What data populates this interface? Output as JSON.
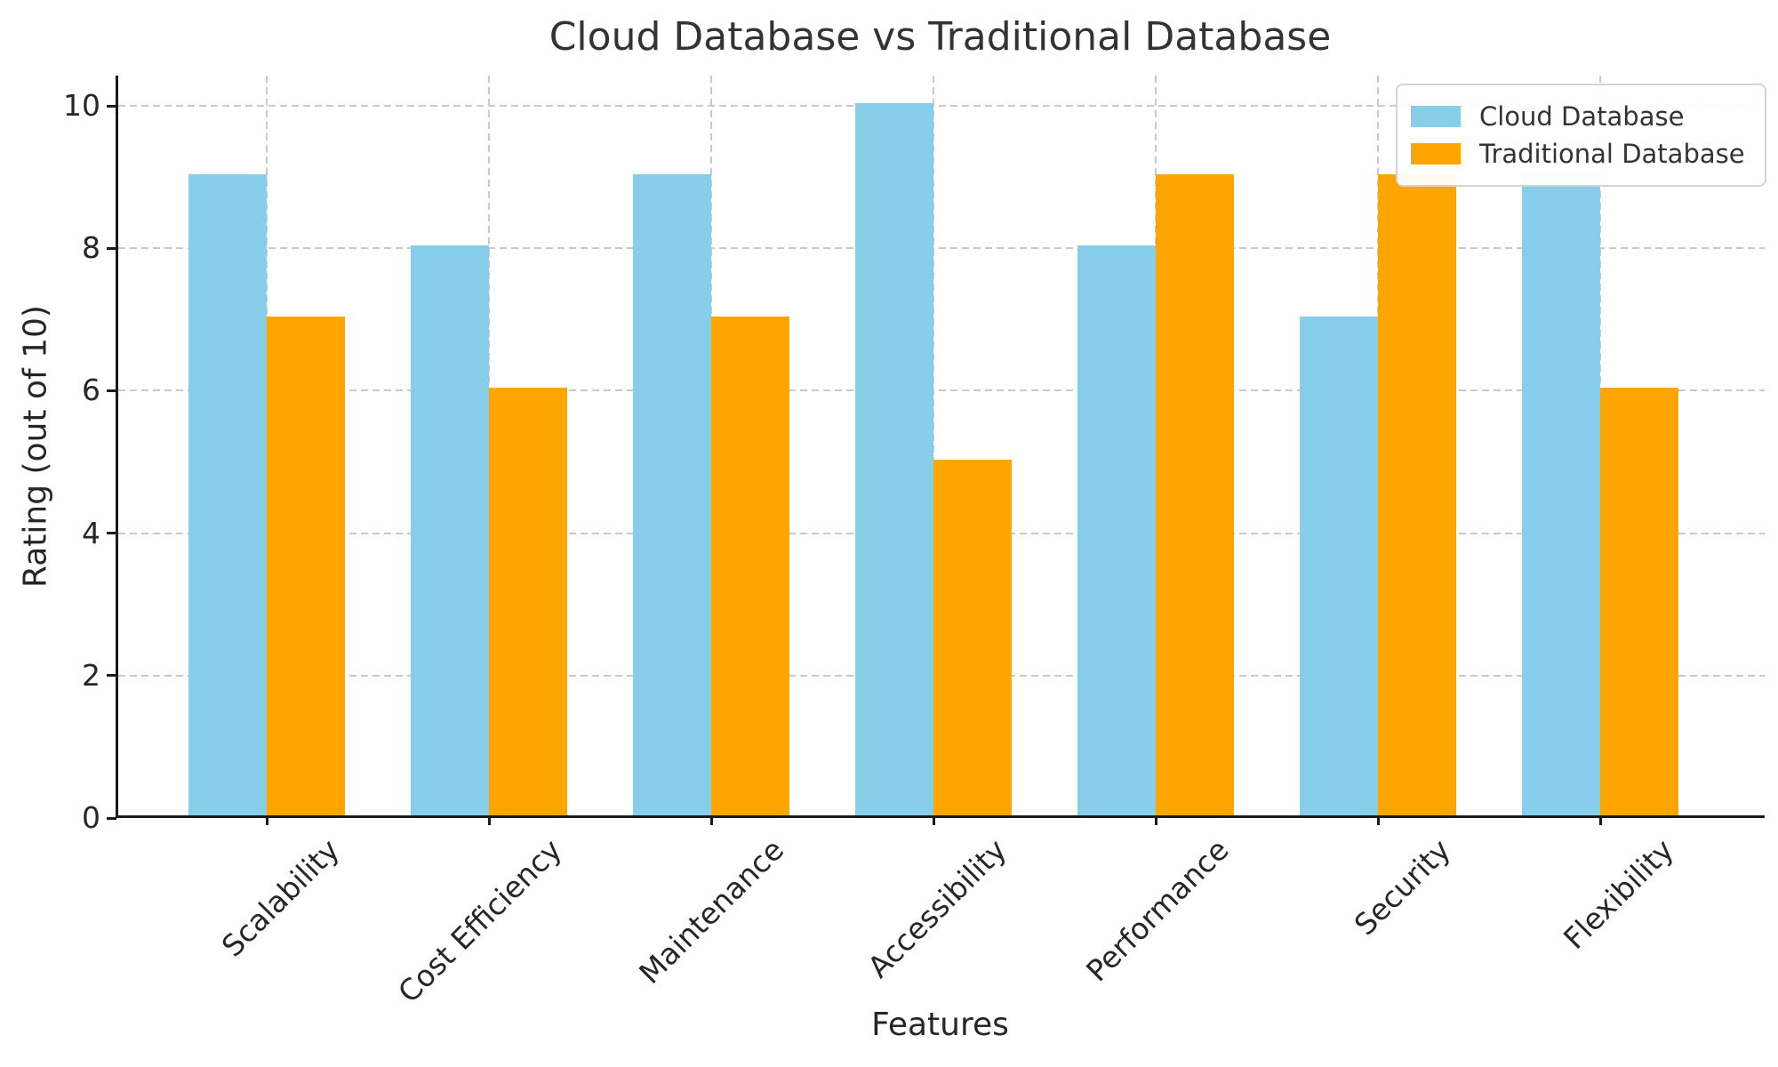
{
  "chart_data": {
    "type": "bar",
    "title": "Cloud Database vs Traditional Database",
    "xlabel": "Features",
    "ylabel": "Rating (out of 10)",
    "categories": [
      "Scalability",
      "Cost Efficiency",
      "Maintenance",
      "Accessibility",
      "Performance",
      "Security",
      "Flexibility"
    ],
    "series": [
      {
        "name": "Cloud Database",
        "color": "#87CEEB",
        "values": [
          9,
          8,
          9,
          10,
          8,
          7,
          9
        ]
      },
      {
        "name": "Traditional Database",
        "color": "#FFA500",
        "values": [
          7,
          6,
          7,
          5,
          9,
          9,
          6
        ]
      }
    ],
    "yticks": [
      0,
      2,
      4,
      6,
      8,
      10
    ],
    "yticklabels": [
      "0",
      "2",
      "4",
      "6",
      "8",
      "10"
    ],
    "ylim": [
      0,
      10.4
    ],
    "grid": "dashed",
    "grid_color": "#c9c9c9",
    "axis_color": "#1a1a1a",
    "legend_position": "top-right"
  }
}
